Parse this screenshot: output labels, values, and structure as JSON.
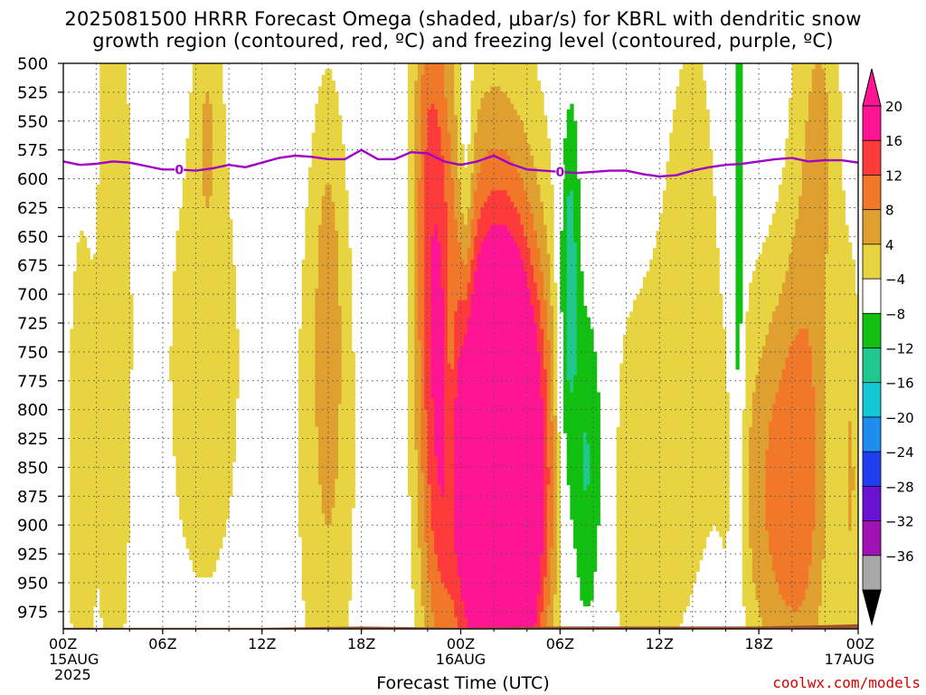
{
  "title": {
    "line1": "2025081500 HRRR Forecast Omega (shaded, μbar/s) for KBRL with dendritic snow",
    "line2": "growth region (contoured, red, ºC) and freezing level (contoured, purple, ºC)"
  },
  "xlabel": "Forecast Time (UTC)",
  "credit": "coolwx.com/models",
  "chart_data": {
    "type": "heatmap",
    "title": "2025081500 HRRR Forecast Omega (shaded, μbar/s) for KBRL with dendritic snow growth region (contoured, red, ºC) and freezing level (contoured, purple, ºC)",
    "xlabel": "Forecast Time (UTC)",
    "ylabel": "",
    "x_range_hours": [
      0,
      48
    ],
    "y_range_hpa": [
      500,
      990
    ],
    "y_reversed": true,
    "grid": true,
    "x_ticks": [
      {
        "hour": 0,
        "label": "00Z",
        "date": "15AUG",
        "year": "2025"
      },
      {
        "hour": 6,
        "label": "06Z"
      },
      {
        "hour": 12,
        "label": "12Z"
      },
      {
        "hour": 18,
        "label": "18Z"
      },
      {
        "hour": 24,
        "label": "00Z",
        "date": "16AUG"
      },
      {
        "hour": 30,
        "label": "06Z"
      },
      {
        "hour": 36,
        "label": "12Z"
      },
      {
        "hour": 42,
        "label": "18Z"
      },
      {
        "hour": 48,
        "label": "00Z",
        "date": "17AUG"
      }
    ],
    "y_ticks": [
      500,
      525,
      550,
      575,
      600,
      625,
      650,
      675,
      700,
      725,
      750,
      775,
      800,
      825,
      850,
      875,
      900,
      925,
      950,
      975
    ],
    "colorbar": {
      "labels": [
        "20",
        "16",
        "12",
        "8",
        "4",
        "−4",
        "−8",
        "−12",
        "−16",
        "−20",
        "−24",
        "−28",
        "−32",
        "−36"
      ],
      "colors": [
        "#ff1493",
        "#ff3a3a",
        "#f07828",
        "#e0a030",
        "#e8d440",
        "#ffffff",
        "#12c012",
        "#20c890",
        "#12c8d4",
        "#1f8cf0",
        "#1f3ef0",
        "#6a12d4",
        "#a012b4",
        "#a8a8a8"
      ],
      "top_arrow_color": "#ff1493",
      "bottom_arrow_color": "#000000"
    },
    "omega_levels": [
      {
        "min": 4,
        "color": "#e8d440"
      },
      {
        "min": 8,
        "color": "#e0a030"
      },
      {
        "min": 12,
        "color": "#f07828"
      },
      {
        "min": 16,
        "color": "#ff3a3a"
      },
      {
        "min": 20,
        "color": "#ff1493"
      },
      {
        "max": -4,
        "color": "#12c012"
      },
      {
        "max": -8,
        "color": "#20c890"
      },
      {
        "max": -12,
        "color": "#12c8d4"
      },
      {
        "max": -16,
        "color": "#1f8cf0"
      }
    ],
    "omega_features": [
      {
        "t": 26.5,
        "p": 870,
        "wt": 1.8,
        "wp": 140,
        "amp": 46
      },
      {
        "t": 25.8,
        "p": 700,
        "wt": 2.6,
        "wp": 200,
        "amp": 9
      },
      {
        "t": 22.5,
        "p": 760,
        "wt": 0.9,
        "wp": 230,
        "amp": 13
      },
      {
        "t": 22.0,
        "p": 540,
        "wt": 0.7,
        "wp": 160,
        "amp": 6
      },
      {
        "t": 31.6,
        "p": 850,
        "wt": 0.9,
        "wp": 120,
        "amp": -12
      },
      {
        "t": 30.3,
        "p": 720,
        "wt": 0.4,
        "wp": 130,
        "amp": -9
      },
      {
        "t": 30.8,
        "p": 640,
        "wt": 0.35,
        "wp": 100,
        "amp": -6
      },
      {
        "t": 40.7,
        "p": 620,
        "wt": 0.28,
        "wp": 340,
        "amp": -7
      },
      {
        "t": 40.8,
        "p": 720,
        "wt": 0.15,
        "wp": 80,
        "amp": -4
      },
      {
        "t": 24.3,
        "p": 590,
        "wt": 0.35,
        "wp": 110,
        "amp": -7
      },
      {
        "t": 23.4,
        "p": 760,
        "wt": 0.25,
        "wp": 80,
        "amp": -6
      },
      {
        "t": 1.0,
        "p": 860,
        "wt": 0.6,
        "wp": 180,
        "amp": 7
      },
      {
        "t": 3.0,
        "p": 700,
        "wt": 0.8,
        "wp": 360,
        "amp": 6
      },
      {
        "t": 8.5,
        "p": 760,
        "wt": 3.0,
        "wp": 280,
        "amp": 5
      },
      {
        "t": 16.0,
        "p": 840,
        "wt": 1.6,
        "wp": 260,
        "amp": 6
      },
      {
        "t": 16.0,
        "p": 720,
        "wt": 0.6,
        "wp": 120,
        "amp": 6
      },
      {
        "t": 34.5,
        "p": 880,
        "wt": 2.2,
        "wp": 170,
        "amp": 6
      },
      {
        "t": 38.0,
        "p": 650,
        "wt": 1.6,
        "wp": 240,
        "amp": 5
      },
      {
        "t": 43.3,
        "p": 870,
        "wt": 1.9,
        "wp": 140,
        "amp": 13
      },
      {
        "t": 45.0,
        "p": 700,
        "wt": 1.1,
        "wp": 320,
        "amp": 6
      },
      {
        "t": 47.6,
        "p": 860,
        "wt": 0.5,
        "wp": 150,
        "amp": 7
      },
      {
        "t": 8.7,
        "p": 560,
        "wt": 0.5,
        "wp": 80,
        "amp": 5
      },
      {
        "t": 46.0,
        "p": 560,
        "wt": 0.8,
        "wp": 100,
        "amp": 5
      }
    ],
    "freezing_level": {
      "color": "#a000c8",
      "label": "0",
      "label_hours": [
        7.0,
        30.0
      ],
      "points": [
        [
          0,
          585
        ],
        [
          1,
          588
        ],
        [
          2,
          587
        ],
        [
          3,
          585
        ],
        [
          4,
          586
        ],
        [
          5,
          589
        ],
        [
          6,
          592
        ],
        [
          7,
          592
        ],
        [
          8,
          593
        ],
        [
          9,
          591
        ],
        [
          10,
          588
        ],
        [
          11,
          590
        ],
        [
          12,
          586
        ],
        [
          13,
          582
        ],
        [
          14,
          580
        ],
        [
          15,
          581
        ],
        [
          16,
          583
        ],
        [
          17,
          583
        ],
        [
          18,
          575
        ],
        [
          19,
          583
        ],
        [
          20,
          583
        ],
        [
          21,
          577
        ],
        [
          22,
          578
        ],
        [
          23,
          585
        ],
        [
          24,
          588
        ],
        [
          25,
          585
        ],
        [
          26,
          580
        ],
        [
          27,
          587
        ],
        [
          28,
          592
        ],
        [
          29,
          593
        ],
        [
          30,
          594
        ],
        [
          31,
          595
        ],
        [
          32,
          594
        ],
        [
          33,
          593
        ],
        [
          34,
          593
        ],
        [
          35,
          596
        ],
        [
          36,
          598
        ],
        [
          37,
          597
        ],
        [
          38,
          593
        ],
        [
          39,
          590
        ],
        [
          40,
          588
        ],
        [
          41,
          587
        ],
        [
          42,
          585
        ],
        [
          43,
          583
        ],
        [
          44,
          582
        ],
        [
          45,
          585
        ],
        [
          46,
          584
        ],
        [
          47,
          584
        ],
        [
          48,
          586
        ]
      ]
    },
    "surface_pressure": [
      [
        0,
        989
      ],
      [
        6,
        989
      ],
      [
        12,
        989
      ],
      [
        18,
        988
      ],
      [
        24,
        989
      ],
      [
        30,
        988
      ],
      [
        36,
        988
      ],
      [
        42,
        988
      ],
      [
        45,
        987
      ],
      [
        48,
        986
      ]
    ],
    "surface_color": "#a0522d"
  }
}
